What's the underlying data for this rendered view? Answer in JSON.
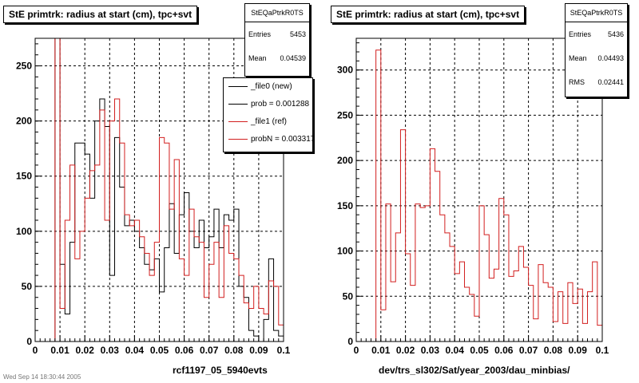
{
  "footer": "Wed Sep 14 18:30:44 2005",
  "colors": {
    "new": "#000000",
    "ref": "#d21f1f",
    "grid": "#000000",
    "background": "#ffffff"
  },
  "chart_data": [
    {
      "type": "histogram",
      "title": "StE primtrk: radius at start (cm), tpc+svt",
      "xlabel": "rcf1197_05_5940evts",
      "xlim": [
        0,
        0.1
      ],
      "ylim": [
        0,
        275
      ],
      "xticks": [
        "0",
        "0.01",
        "0.02",
        "0.03",
        "0.04",
        "0.05",
        "0.06",
        "0.07",
        "0.08",
        "0.09",
        "0.1"
      ],
      "yticks": [
        "0",
        "50",
        "100",
        "150",
        "200",
        "250"
      ],
      "ytick_values": [
        0,
        50,
        100,
        150,
        200,
        250
      ],
      "grid": true,
      "bin_edges_start": 0,
      "bin_width": 0.002,
      "stats": {
        "name": "StEQaPtrkR0TS",
        "entries_label": "Entries",
        "entries": "5453",
        "mean_label": "Mean",
        "mean": "0.04539"
      },
      "legend": {
        "placement": "top-right",
        "entries": [
          {
            "label": "_file0 (new)",
            "color": "#000000"
          },
          {
            "label": "prob = 0.001288",
            "color": "#000000"
          },
          {
            "label": "_file1 (ref)",
            "color": "#d21f1f"
          },
          {
            "label": "probN = 0.003317",
            "color": "#d21f1f"
          }
        ]
      },
      "series": [
        {
          "name": "_file0 (new)",
          "color": "#000000",
          "values": [
            0,
            0,
            0,
            0,
            278,
            70,
            25,
            90,
            180,
            180,
            170,
            130,
            200,
            220,
            195,
            60,
            185,
            140,
            105,
            110,
            100,
            85,
            70,
            65,
            75,
            45,
            85,
            125,
            80,
            115,
            135,
            100,
            85,
            110,
            85,
            95,
            120,
            85,
            115,
            110,
            120,
            50,
            40,
            10,
            5,
            0,
            20,
            75,
            10,
            5
          ]
        },
        {
          "name": "_file1 (ref)",
          "color": "#d21f1f",
          "values": [
            0,
            0,
            0,
            0,
            278,
            30,
            110,
            160,
            75,
            100,
            130,
            155,
            160,
            210,
            110,
            200,
            220,
            180,
            115,
            105,
            110,
            95,
            80,
            60,
            90,
            185,
            180,
            120,
            165,
            75,
            60,
            120,
            95,
            90,
            40,
            70,
            90,
            40,
            105,
            80,
            75,
            60,
            35,
            30,
            50,
            30,
            25,
            55,
            50,
            15
          ]
        }
      ]
    },
    {
      "type": "histogram",
      "title": "StE primtrk: radius at start (cm), tpc+svt",
      "xlabel": "dev/trs_sl302/Sat/year_2003/dau_minbias/",
      "xlim": [
        0,
        0.1
      ],
      "ylim": [
        0,
        335
      ],
      "xticks": [
        "0",
        "0.01",
        "0.02",
        "0.03",
        "0.04",
        "0.05",
        "0.06",
        "0.07",
        "0.08",
        "0.09",
        "0.1"
      ],
      "yticks": [
        "0",
        "50",
        "100",
        "150",
        "200",
        "250",
        "300"
      ],
      "ytick_values": [
        0,
        50,
        100,
        150,
        200,
        250,
        300
      ],
      "grid": true,
      "bin_edges_start": 0,
      "bin_width": 0.002,
      "stats": {
        "name": "StEQaPtrkR0TS",
        "entries_label": "Entries",
        "entries": "5436",
        "mean_label": "Mean",
        "mean": "0.04493",
        "rms_label": "RMS",
        "rms": "0.02441"
      },
      "series": [
        {
          "name": "",
          "color": "#d21f1f",
          "values": [
            0,
            0,
            0,
            0,
            322,
            35,
            152,
            66,
            120,
            234,
            97,
            62,
            152,
            148,
            150,
            213,
            188,
            140,
            120,
            105,
            75,
            88,
            60,
            52,
            28,
            150,
            118,
            70,
            80,
            158,
            140,
            72,
            78,
            105,
            82,
            62,
            25,
            85,
            65,
            60,
            22,
            55,
            20,
            65,
            42,
            58,
            20,
            55,
            88,
            18
          ]
        }
      ]
    }
  ]
}
